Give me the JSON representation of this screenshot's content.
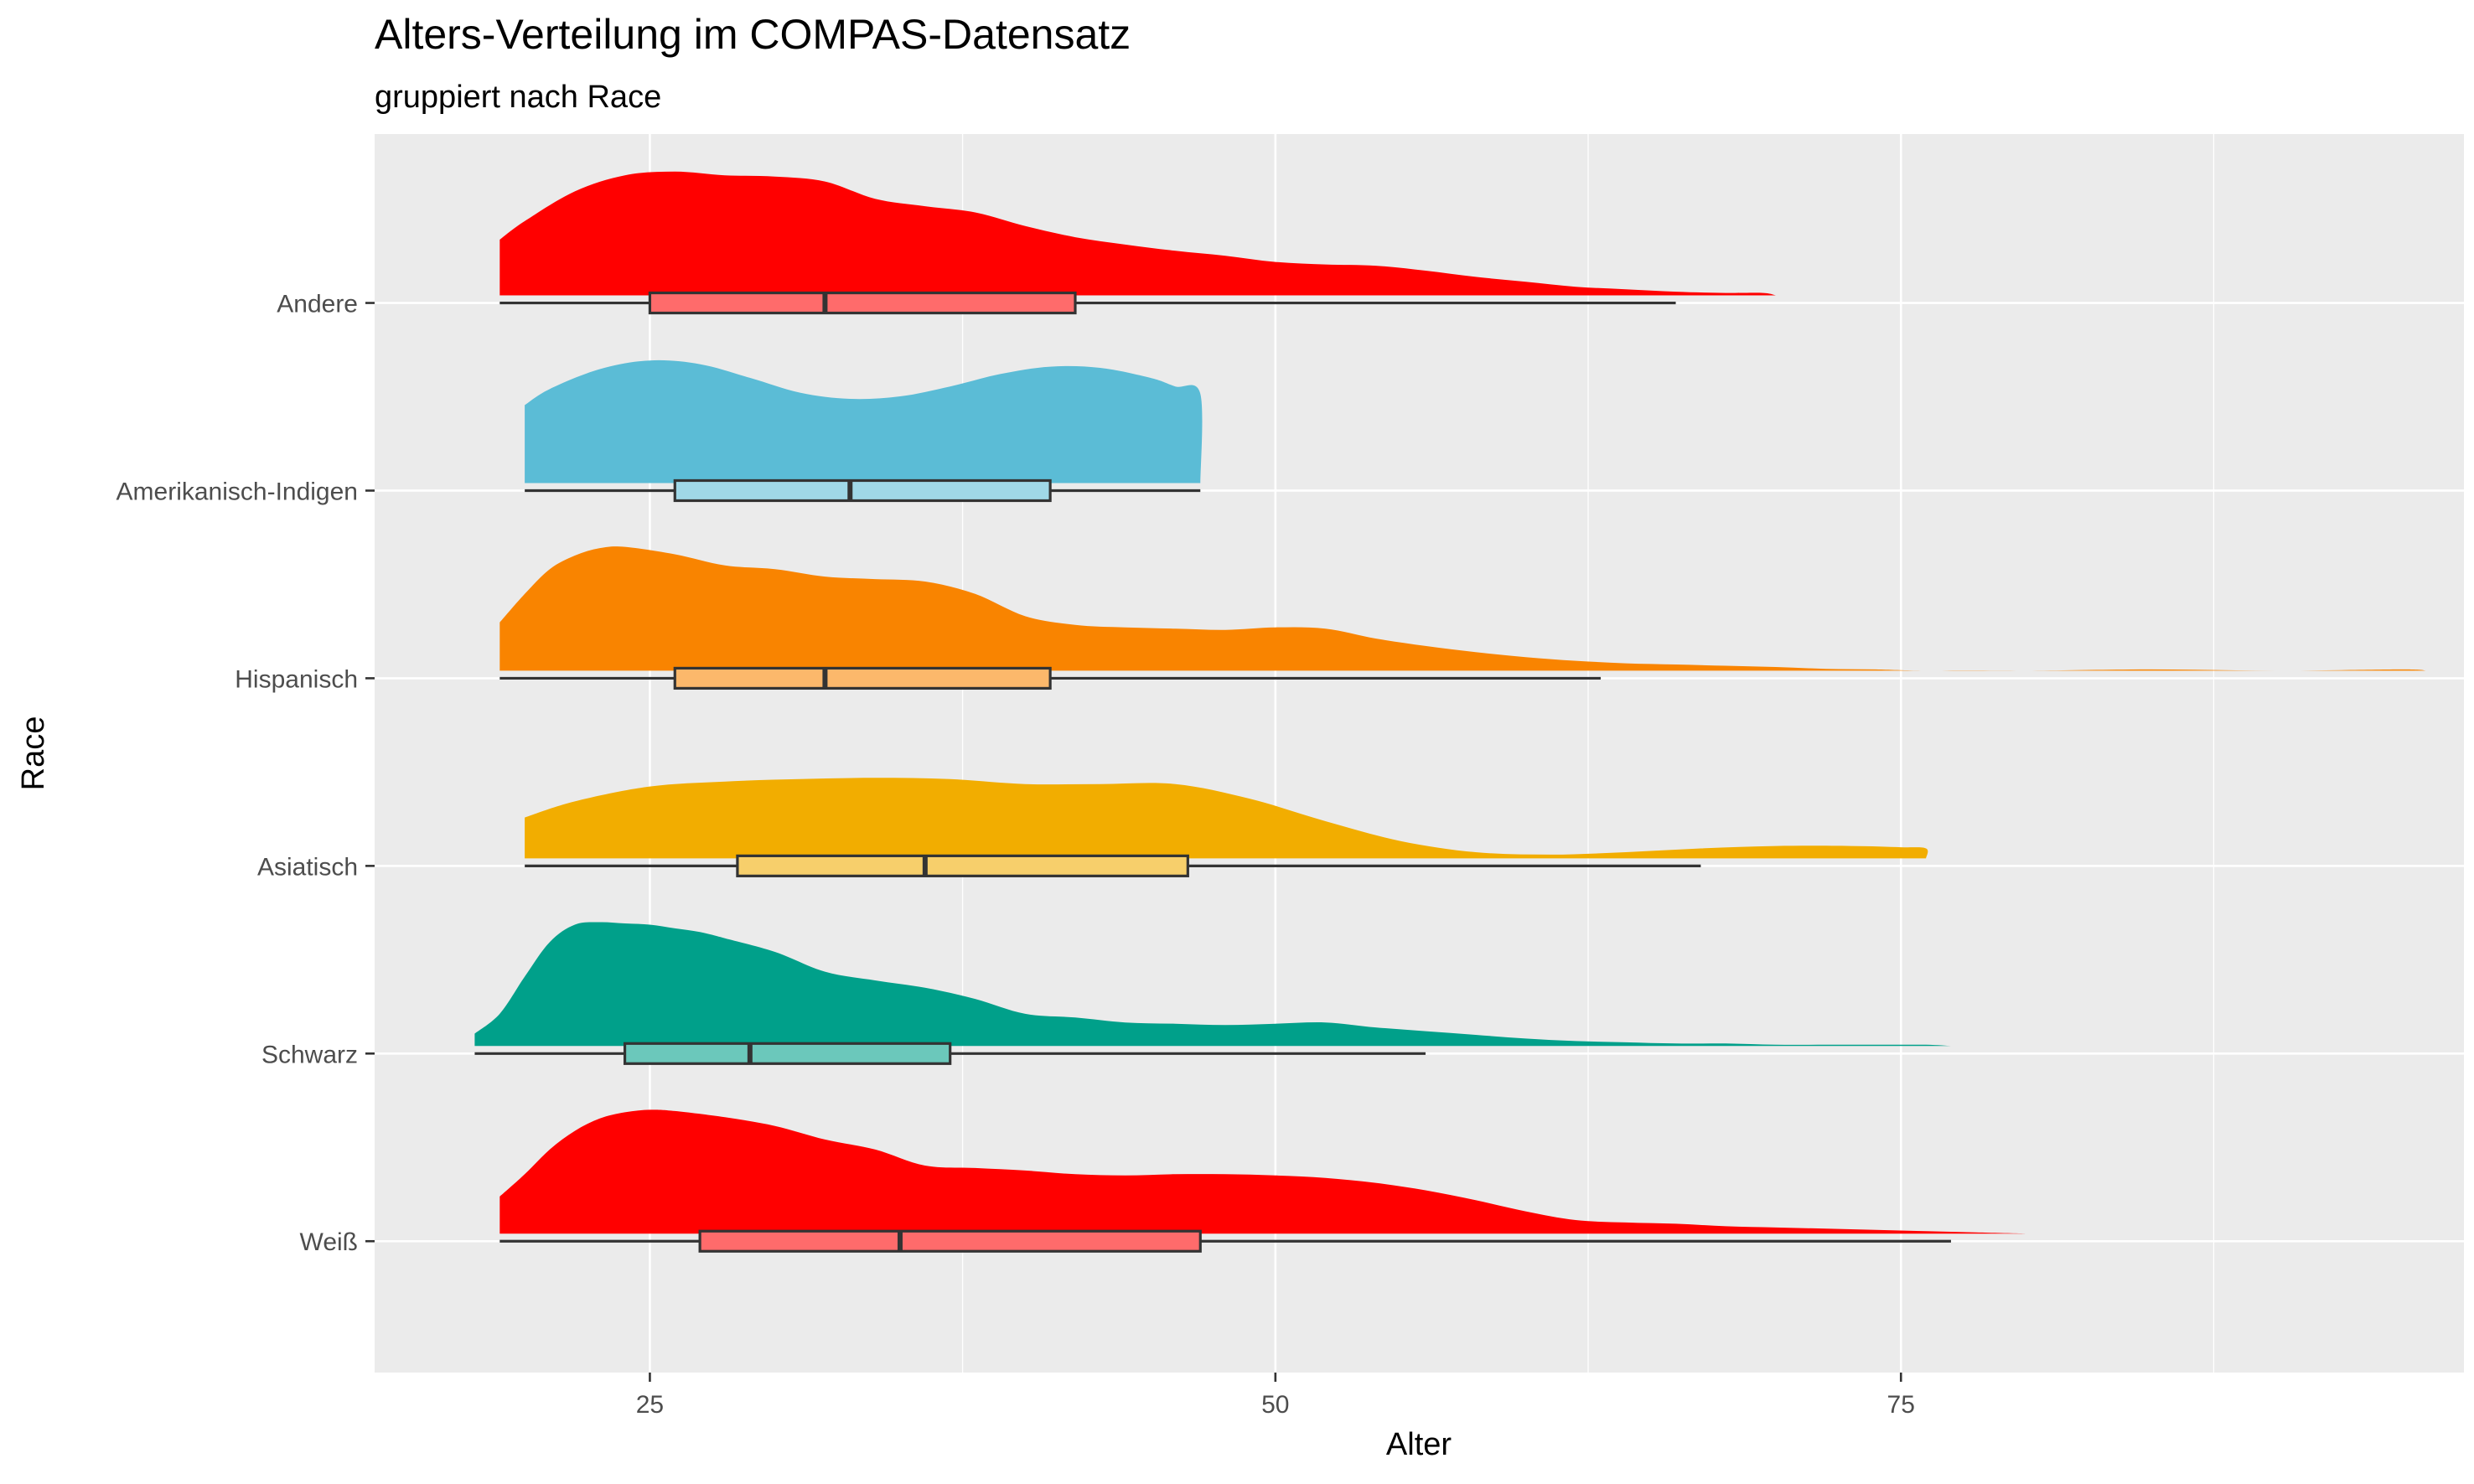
{
  "chart_data": {
    "type": "raincloud",
    "title": "Alters-Verteilung im COMPAS-Datensatz",
    "subtitle": "gruppiert nach Race",
    "xlabel": "Alter",
    "ylabel": "Race",
    "xlim": [
      14,
      97.5
    ],
    "x_ticks": [
      25,
      50,
      75
    ],
    "x_tick_labels": [
      "25",
      "50",
      "75"
    ],
    "grid": true,
    "panel_background": "#ebebeb",
    "categories": [
      "Andere",
      "Amerikanisch-Indigen",
      "Hispanisch",
      "Asiatisch",
      "Schwarz",
      "Weiß"
    ],
    "series": [
      {
        "name": "Andere",
        "color": "#ff0000",
        "box": {
          "whisker_low": 19,
          "q1": 25,
          "median": 32,
          "q3": 42,
          "whisker_high": 66
        },
        "density_x": [
          19,
          20,
          22,
          24,
          26,
          28,
          30,
          32,
          34,
          36,
          38,
          40,
          42,
          44,
          46,
          48,
          50,
          52,
          54,
          56,
          58,
          60,
          62,
          64,
          66,
          68,
          69.5,
          70
        ],
        "density_y": [
          0.45,
          0.6,
          0.84,
          0.97,
          1.0,
          0.97,
          0.96,
          0.92,
          0.78,
          0.72,
          0.67,
          0.56,
          0.47,
          0.41,
          0.36,
          0.32,
          0.27,
          0.25,
          0.24,
          0.2,
          0.15,
          0.11,
          0.07,
          0.05,
          0.03,
          0.02,
          0.02,
          0.0
        ]
      },
      {
        "name": "Amerikanisch-Indigen",
        "color": "#5bbcd6",
        "box": {
          "whisker_low": 20,
          "q1": 26,
          "median": 33,
          "q3": 41,
          "whisker_high": 47
        },
        "density_x": [
          20,
          21,
          23,
          25,
          27,
          29,
          31,
          33,
          35,
          37,
          39,
          41,
          43,
          45,
          46,
          47,
          47
        ],
        "density_y": [
          0.63,
          0.76,
          0.92,
          0.99,
          0.96,
          0.85,
          0.73,
          0.68,
          0.7,
          0.78,
          0.88,
          0.94,
          0.93,
          0.85,
          0.78,
          0.72,
          0.0
        ]
      },
      {
        "name": "Hispanisch",
        "color": "#f98400",
        "box": {
          "whisker_low": 19,
          "q1": 26,
          "median": 32,
          "q3": 41,
          "whisker_high": 63
        },
        "density_x": [
          19,
          20,
          21,
          22,
          23,
          24,
          26,
          28,
          30,
          32,
          34,
          36,
          38,
          40,
          42,
          44,
          46,
          48,
          50,
          52,
          54,
          56,
          58,
          60,
          62,
          64,
          66,
          68,
          70,
          72,
          74,
          76,
          80,
          85,
          90,
          95,
          96
        ],
        "density_y": [
          0.39,
          0.62,
          0.82,
          0.93,
          0.99,
          1.0,
          0.94,
          0.85,
          0.82,
          0.76,
          0.74,
          0.72,
          0.62,
          0.44,
          0.37,
          0.35,
          0.34,
          0.33,
          0.35,
          0.34,
          0.26,
          0.2,
          0.15,
          0.11,
          0.08,
          0.06,
          0.05,
          0.04,
          0.03,
          0.015,
          0.01,
          0.0,
          0.0,
          0.01,
          0.0,
          0.01,
          0.0
        ]
      },
      {
        "name": "Asiatisch",
        "color": "#f2ad00",
        "box": {
          "whisker_low": 20,
          "q1": 28.5,
          "median": 36,
          "q3": 46.5,
          "whisker_high": 67
        },
        "density_x": [
          20,
          22,
          25,
          28,
          31,
          34,
          37,
          40,
          43,
          46,
          49,
          52,
          55,
          58,
          61,
          64,
          67,
          70,
          73,
          75,
          76,
          76
        ],
        "density_y": [
          0.33,
          0.46,
          0.58,
          0.62,
          0.64,
          0.65,
          0.64,
          0.6,
          0.6,
          0.6,
          0.48,
          0.3,
          0.14,
          0.05,
          0.03,
          0.05,
          0.08,
          0.1,
          0.1,
          0.09,
          0.08,
          0.0
        ]
      },
      {
        "name": "Schwarz",
        "color": "#00a08a",
        "box": {
          "whisker_low": 18,
          "q1": 24,
          "median": 29,
          "q3": 37,
          "whisker_high": 56
        },
        "density_x": [
          18,
          19,
          20,
          21,
          22,
          23,
          24,
          25,
          26,
          27,
          28,
          30,
          32,
          34,
          36,
          38,
          40,
          42,
          44,
          46,
          48,
          50,
          52,
          54,
          56,
          58,
          60,
          62,
          64,
          66,
          68,
          70,
          72,
          74,
          76,
          77
        ],
        "density_y": [
          0.1,
          0.26,
          0.56,
          0.84,
          0.98,
          1.0,
          0.99,
          0.98,
          0.95,
          0.92,
          0.87,
          0.76,
          0.6,
          0.53,
          0.47,
          0.38,
          0.26,
          0.23,
          0.19,
          0.18,
          0.17,
          0.18,
          0.19,
          0.15,
          0.12,
          0.09,
          0.06,
          0.04,
          0.03,
          0.02,
          0.02,
          0.01,
          0.01,
          0.01,
          0.01,
          0.0
        ]
      },
      {
        "name": "Weiß",
        "color": "#ff0000",
        "box": {
          "whisker_low": 19,
          "q1": 27,
          "median": 35,
          "q3": 47,
          "whisker_high": 77
        },
        "density_x": [
          19,
          20,
          21,
          22,
          23,
          24,
          25,
          26,
          28,
          30,
          32,
          34,
          36,
          38,
          40,
          42,
          44,
          46,
          48,
          50,
          52,
          54,
          56,
          58,
          60,
          62,
          64,
          66,
          68,
          70,
          72,
          74,
          76,
          78,
          80
        ],
        "density_y": [
          0.3,
          0.48,
          0.68,
          0.83,
          0.93,
          0.98,
          1.0,
          0.99,
          0.94,
          0.87,
          0.76,
          0.68,
          0.55,
          0.53,
          0.51,
          0.48,
          0.47,
          0.48,
          0.48,
          0.47,
          0.45,
          0.41,
          0.35,
          0.27,
          0.18,
          0.11,
          0.09,
          0.08,
          0.06,
          0.05,
          0.04,
          0.03,
          0.02,
          0.01,
          0.0
        ]
      }
    ]
  }
}
